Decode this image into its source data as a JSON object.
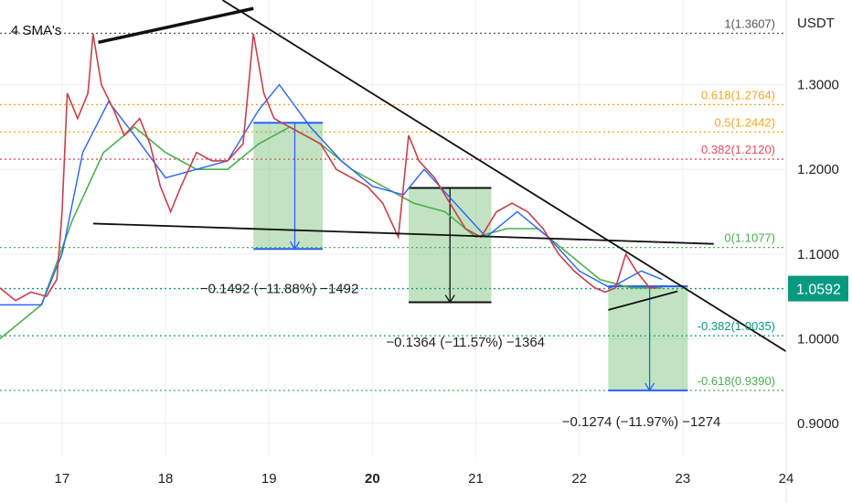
{
  "chart_data": {
    "type": "line",
    "legend": "4 SMA's",
    "y_axis_title": "USDT",
    "ylim": [
      0.86,
      1.4
    ],
    "xlim": [
      16.4,
      24.0
    ],
    "y_ticks": [
      {
        "v": 0.9,
        "label": "0.9000"
      },
      {
        "v": 1.0,
        "label": "1.0000"
      },
      {
        "v": 1.1,
        "label": "1.1000"
      },
      {
        "v": 1.2,
        "label": "1.2000"
      },
      {
        "v": 1.3,
        "label": "1.3000"
      }
    ],
    "x_ticks": [
      {
        "v": 17,
        "label": "17",
        "bold": false
      },
      {
        "v": 18,
        "label": "18",
        "bold": false
      },
      {
        "v": 19,
        "label": "19",
        "bold": false
      },
      {
        "v": 20,
        "label": "20",
        "bold": true
      },
      {
        "v": 21,
        "label": "21",
        "bold": false
      },
      {
        "v": 22,
        "label": "22",
        "bold": false
      },
      {
        "v": 23,
        "label": "23",
        "bold": false
      },
      {
        "v": 24,
        "label": "24",
        "bold": false
      }
    ],
    "current_price": {
      "value": 1.0592,
      "label": "1.0592",
      "color": "#089981"
    },
    "fib_levels": [
      {
        "price": 1.3607,
        "label": "1(1.3607)",
        "color": "#555555"
      },
      {
        "price": 1.2764,
        "label": "0.618(1.2764)",
        "color": "#f5a623"
      },
      {
        "price": 1.2442,
        "label": "0.5(1.2442)",
        "color": "#f5a623"
      },
      {
        "price": 1.212,
        "label": "0.382(1.2120)",
        "color": "#e84e5b"
      },
      {
        "price": 1.1077,
        "label": "0(1.1077)",
        "color": "#4caf50"
      },
      {
        "price": 1.0035,
        "label": "-0.382(1.0035)",
        "color": "#089981"
      },
      {
        "price": 0.939,
        "label": "-0.618(0.9390)",
        "color": "#4caf50"
      }
    ],
    "measures": [
      {
        "x0": 18.85,
        "x1": 19.52,
        "top": 1.255,
        "bottom": 1.106,
        "arrow_x": 19.25,
        "label": "−0.1492 (−11.88%) −1492",
        "label_x": 19.1,
        "label_y": 1.0592
      },
      {
        "x0": 20.35,
        "x1": 21.15,
        "top": 1.178,
        "bottom": 1.043,
        "arrow_x": 20.75,
        "label": "−0.1364 (−11.57%) −1364",
        "label_x": 20.9,
        "label_y": 0.996
      },
      {
        "x0": 22.28,
        "x1": 23.05,
        "top": 1.062,
        "bottom": 0.939,
        "arrow_x": 22.68,
        "label": "−0.1274 (−11.97%) −1274",
        "label_x": 22.6,
        "label_y": 0.902
      }
    ],
    "trendlines": [
      {
        "x0": 17.35,
        "y0": 1.35,
        "x1": 18.85,
        "y1": 1.39,
        "width": 3.5
      },
      {
        "x0": 18.55,
        "y0": 1.4,
        "x1": 24.0,
        "y1": 0.985,
        "width": 1.8
      },
      {
        "x0": 17.3,
        "y0": 1.136,
        "x1": 23.3,
        "y1": 1.112,
        "width": 1.8
      },
      {
        "x0": 22.28,
        "y0": 1.034,
        "x1": 22.95,
        "y1": 1.056,
        "width": 1.8
      }
    ],
    "price": [
      [
        16.4,
        1.06
      ],
      [
        16.55,
        1.045
      ],
      [
        16.7,
        1.055
      ],
      [
        16.85,
        1.05
      ],
      [
        16.95,
        1.07
      ],
      [
        17.0,
        1.15
      ],
      [
        17.05,
        1.29
      ],
      [
        17.15,
        1.26
      ],
      [
        17.25,
        1.29
      ],
      [
        17.3,
        1.36
      ],
      [
        17.38,
        1.3
      ],
      [
        17.5,
        1.27
      ],
      [
        17.6,
        1.24
      ],
      [
        17.75,
        1.26
      ],
      [
        17.85,
        1.23
      ],
      [
        17.95,
        1.18
      ],
      [
        18.05,
        1.15
      ],
      [
        18.15,
        1.18
      ],
      [
        18.3,
        1.22
      ],
      [
        18.45,
        1.21
      ],
      [
        18.6,
        1.21
      ],
      [
        18.75,
        1.23
      ],
      [
        18.85,
        1.36
      ],
      [
        18.95,
        1.29
      ],
      [
        19.05,
        1.26
      ],
      [
        19.2,
        1.25
      ],
      [
        19.35,
        1.24
      ],
      [
        19.5,
        1.23
      ],
      [
        19.65,
        1.2
      ],
      [
        19.8,
        1.19
      ],
      [
        19.95,
        1.18
      ],
      [
        20.1,
        1.16
      ],
      [
        20.25,
        1.12
      ],
      [
        20.35,
        1.24
      ],
      [
        20.45,
        1.21
      ],
      [
        20.6,
        1.19
      ],
      [
        20.75,
        1.16
      ],
      [
        20.9,
        1.13
      ],
      [
        21.05,
        1.12
      ],
      [
        21.2,
        1.15
      ],
      [
        21.35,
        1.16
      ],
      [
        21.5,
        1.15
      ],
      [
        21.65,
        1.13
      ],
      [
        21.8,
        1.1
      ],
      [
        21.95,
        1.08
      ],
      [
        22.05,
        1.07
      ],
      [
        22.15,
        1.06
      ],
      [
        22.25,
        1.055
      ],
      [
        22.35,
        1.06
      ],
      [
        22.45,
        1.1
      ],
      [
        22.55,
        1.08
      ],
      [
        22.68,
        1.06
      ],
      [
        22.75,
        1.06
      ]
    ],
    "sma_fast": [
      [
        16.4,
        1.04
      ],
      [
        16.8,
        1.04
      ],
      [
        17.0,
        1.1
      ],
      [
        17.2,
        1.22
      ],
      [
        17.45,
        1.28
      ],
      [
        17.7,
        1.24
      ],
      [
        18.0,
        1.19
      ],
      [
        18.3,
        1.2
      ],
      [
        18.6,
        1.21
      ],
      [
        18.9,
        1.27
      ],
      [
        19.1,
        1.3
      ],
      [
        19.4,
        1.25
      ],
      [
        19.7,
        1.21
      ],
      [
        20.0,
        1.18
      ],
      [
        20.3,
        1.17
      ],
      [
        20.5,
        1.2
      ],
      [
        20.8,
        1.16
      ],
      [
        21.1,
        1.12
      ],
      [
        21.4,
        1.15
      ],
      [
        21.7,
        1.12
      ],
      [
        22.0,
        1.08
      ],
      [
        22.3,
        1.06
      ],
      [
        22.6,
        1.08
      ],
      [
        22.8,
        1.07
      ]
    ],
    "sma_slow": [
      [
        16.4,
        1.0
      ],
      [
        16.8,
        1.04
      ],
      [
        17.1,
        1.14
      ],
      [
        17.4,
        1.22
      ],
      [
        17.7,
        1.25
      ],
      [
        18.0,
        1.22
      ],
      [
        18.3,
        1.2
      ],
      [
        18.6,
        1.2
      ],
      [
        18.9,
        1.23
      ],
      [
        19.2,
        1.25
      ],
      [
        19.5,
        1.23
      ],
      [
        19.8,
        1.2
      ],
      [
        20.1,
        1.18
      ],
      [
        20.4,
        1.16
      ],
      [
        20.7,
        1.15
      ],
      [
        21.0,
        1.12
      ],
      [
        21.3,
        1.13
      ],
      [
        21.6,
        1.13
      ],
      [
        21.9,
        1.1
      ],
      [
        22.2,
        1.07
      ],
      [
        22.5,
        1.06
      ],
      [
        22.8,
        1.06
      ]
    ]
  }
}
